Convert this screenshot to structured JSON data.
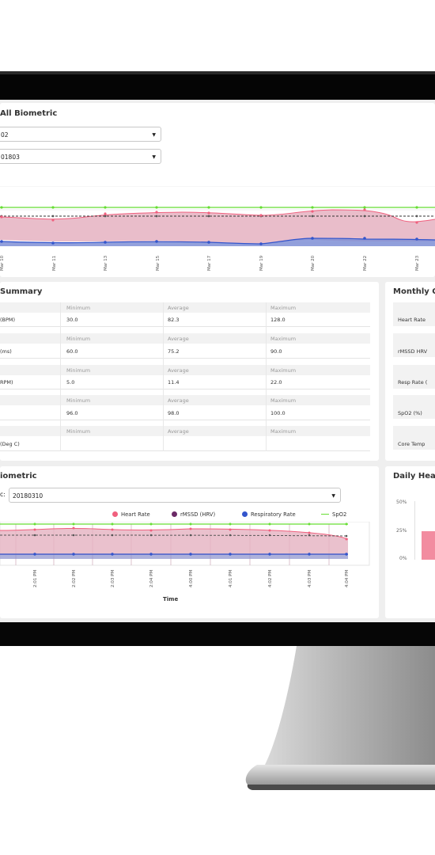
{
  "top_panel": {
    "title": "All Biometric",
    "select1_value": "02",
    "select2_value": "01803",
    "x_ticks": [
      "Mar 10",
      "Mar 11",
      "Mar 13",
      "Mar 15",
      "Mar 17",
      "Mar 19",
      "Mar 20",
      "Mar 22",
      "Mar 23"
    ]
  },
  "summary": {
    "title": "Summary",
    "col_headers": [
      "Minimum",
      "Average",
      "Maximum"
    ],
    "rows": [
      {
        "label": "(BPM)",
        "min": "30.0",
        "avg": "82.3",
        "max": "128.0"
      },
      {
        "label": "(ms)",
        "min": "60.0",
        "avg": "75.2",
        "max": "90.0"
      },
      {
        "label": "RPM)",
        "min": "5.0",
        "avg": "11.4",
        "max": "22.0"
      },
      {
        "label": "",
        "min": "96.0",
        "avg": "98.0",
        "max": "100.0"
      },
      {
        "label": "(Deg C)",
        "min": "",
        "avg": "",
        "max": ""
      }
    ]
  },
  "monthly": {
    "title": "Monthly C",
    "rows": [
      "Heart Rate",
      "rMSSD HRV",
      "Resp Rate (",
      "SpO2 (%)",
      "Core Temp"
    ]
  },
  "bottom_panel": {
    "title": "iometric",
    "select_prefix": "c:",
    "select_value": "20180310",
    "legend": [
      {
        "label": "Heart Rate",
        "color": "#f0607e"
      },
      {
        "label": "rMSSD (HRV)",
        "color": "#6b2a66"
      },
      {
        "label": "Respiratory Rate",
        "color": "#3355cc"
      },
      {
        "label": "SpO2",
        "color": "#66dd33"
      }
    ],
    "x_ticks": [
      "2:01 PM",
      "2:02 PM",
      "2:03 PM",
      "2:04 PM",
      "4:00 PM",
      "4:01 PM",
      "4:02 PM",
      "4:03 PM",
      "4:04 PM"
    ],
    "x_axis_label": "Time"
  },
  "daily": {
    "title": "Daily Hea",
    "y_ticks": [
      "50%",
      "25%",
      "0%"
    ],
    "bar_color": "#f28ca0"
  },
  "colors": {
    "heart_rate": "#f0607e",
    "heart_fill": "#e5b2c1",
    "hrv": "#6b2a66",
    "resp": "#3355cc",
    "spo2": "#66dd33"
  }
}
